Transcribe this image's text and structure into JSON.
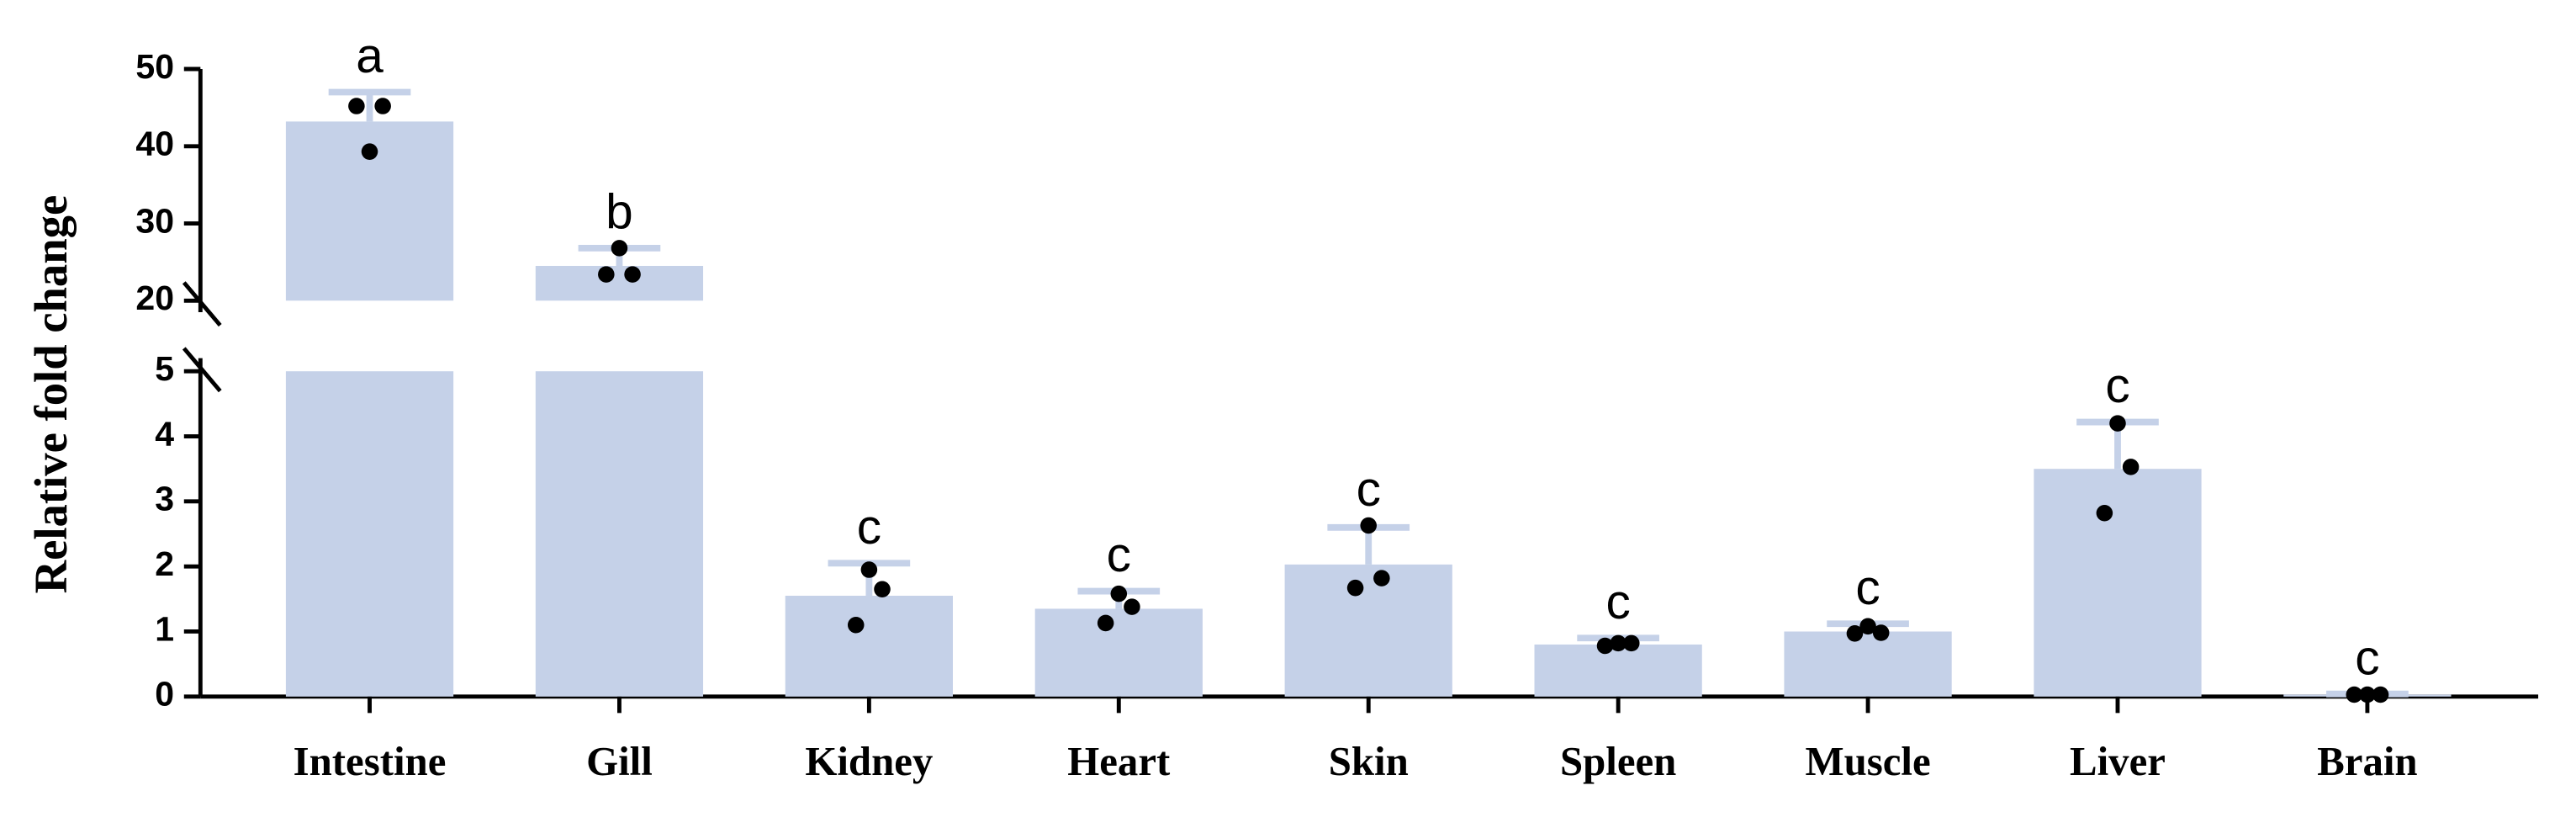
{
  "chart_data": {
    "type": "bar",
    "y_label": "Relative fold change",
    "categories": [
      "Intestine",
      "Gill",
      "Kidney",
      "Heart",
      "Skin",
      "Spleen",
      "Muscle",
      "Liver",
      "Brain"
    ],
    "values": [
      43.2,
      24.5,
      1.55,
      1.35,
      2.03,
      0.8,
      1.0,
      3.5,
      0.03
    ],
    "errors": [
      3.8,
      2.3,
      0.5,
      0.27,
      0.57,
      0.1,
      0.12,
      0.72,
      0.01
    ],
    "points": [
      [
        45.2,
        39.3,
        45.2
      ],
      [
        23.4,
        26.8,
        23.4
      ],
      [
        1.1,
        1.95,
        1.65
      ],
      [
        1.13,
        1.58,
        1.38
      ],
      [
        1.67,
        2.63,
        1.82
      ],
      [
        0.78,
        0.82,
        0.82
      ],
      [
        0.97,
        1.08,
        0.98
      ],
      [
        2.82,
        4.2,
        3.53
      ],
      [
        0.03,
        0.03,
        0.03
      ]
    ],
    "letters": [
      "a",
      "b",
      "c",
      "c",
      "c",
      "c",
      "c",
      "c",
      "c"
    ],
    "color": "#c5d1e8",
    "point_color": "#000000",
    "ylim": [
      0,
      50
    ],
    "y_break": [
      5,
      20
    ],
    "yticks": [
      0,
      1,
      2,
      3,
      4,
      5,
      20,
      30,
      40,
      50
    ]
  }
}
